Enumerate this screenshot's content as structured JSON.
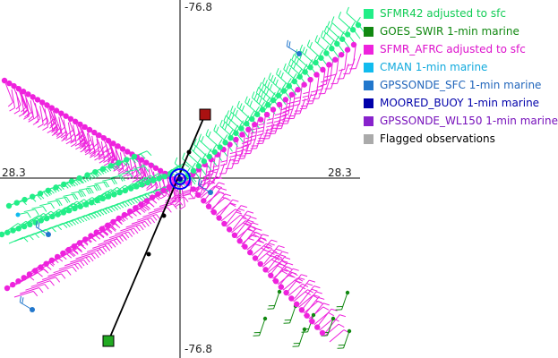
{
  "axes": {
    "lat_top": "-76.8",
    "lat_bottom": "-76.8",
    "lon_left": "28.3",
    "lon_right": "28.3"
  },
  "legend": [
    {
      "label": "SFMR42 adjusted to sfc",
      "color": "#22ee88",
      "text_color": "#11cc55"
    },
    {
      "label": "GOES_SWIR 1-min marine",
      "color": "#118811",
      "text_color": "#118811"
    },
    {
      "label": "SFMR_AFRC adjusted to sfc",
      "color": "#ee22dd",
      "text_color": "#dd11cc"
    },
    {
      "label": "CMAN 1-min marine",
      "color": "#11bbee",
      "text_color": "#11aadd"
    },
    {
      "label": "GPSSONDE_SFC 1-min marine",
      "color": "#2277cc",
      "text_color": "#2266bb"
    },
    {
      "label": "MOORED_BUOY 1-min marine",
      "color": "#0000aa",
      "text_color": "#0000aa"
    },
    {
      "label": "GPSSONDE_WL150 1-min marine",
      "color": "#8822cc",
      "text_color": "#7711bb"
    },
    {
      "label": "Flagged observations",
      "color": "#aaaaaa",
      "text_color": "#000000"
    }
  ],
  "track": {
    "start_marker_color": "#22aa22",
    "end_marker_color": "#aa1111",
    "center_marker_color": "#0000ff"
  }
}
